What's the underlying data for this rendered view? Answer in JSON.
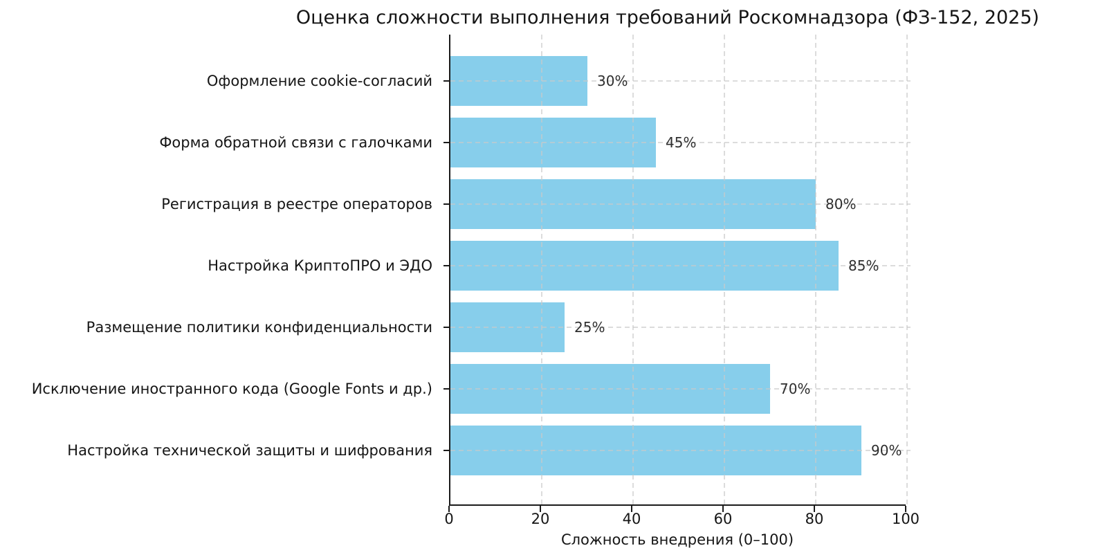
{
  "title": "Оценка сложности выполнения требований Роскомнадзора (ФЗ-152, 2025)",
  "chart_data": {
    "type": "bar",
    "orientation": "horizontal",
    "title": "Оценка сложности выполнения требований Роскомнадзора (ФЗ-152, 2025)",
    "categories": [
      "Оформление cookie-согласий",
      "Форма обратной связи с галочками",
      "Регистрация в реестре операторов",
      "Настройка КриптоПРО и ЭДО",
      "Размещение политики конфиденциальности",
      "Исключение иностранного кода (Google Fonts и др.)",
      "Настройка технической защиты и шифрования"
    ],
    "values": [
      30,
      45,
      80,
      85,
      25,
      70,
      90
    ],
    "value_labels": [
      "30%",
      "45%",
      "80%",
      "85%",
      "25%",
      "70%",
      "90%"
    ],
    "xlabel": "Сложность внедрения (0–100)",
    "ylabel": "",
    "xticks": [
      0,
      20,
      40,
      60,
      80,
      100
    ],
    "xlim": [
      0,
      100
    ],
    "grid": "dashed",
    "grid_color": "#c9c9c9",
    "bar_color": "#87CEEB",
    "axis_color": "#1a1a1a",
    "legend": "none"
  }
}
